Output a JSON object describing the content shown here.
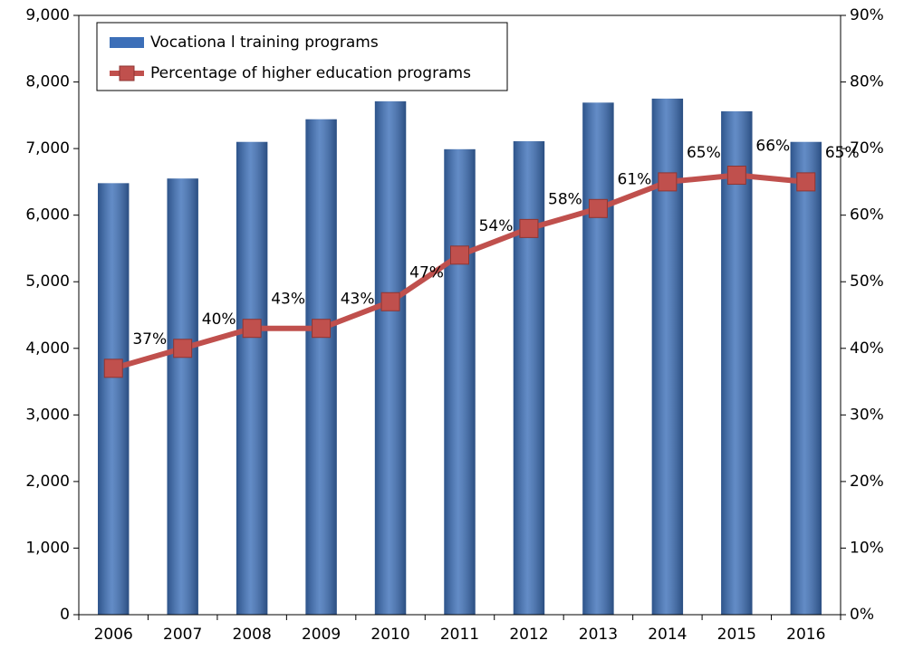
{
  "chart_data": {
    "type": "bar-line",
    "categories": [
      "2006",
      "2007",
      "2008",
      "2009",
      "2010",
      "2011",
      "2012",
      "2013",
      "2014",
      "2015",
      "2016"
    ],
    "series": [
      {
        "name": "Vocationa l training programs",
        "type": "bar",
        "color": "#3c6fb8",
        "values": [
          6480,
          6550,
          7100,
          7440,
          7710,
          6990,
          7110,
          7690,
          7750,
          7560,
          7100
        ]
      },
      {
        "name": "Percentage of higher education programs",
        "type": "line",
        "axis": "y2",
        "color": "#c0504d",
        "values": [
          37,
          40,
          43,
          43,
          47,
          54,
          58,
          61,
          65,
          66,
          65
        ],
        "value_labels": [
          "37%",
          "40%",
          "43%",
          "43%",
          "47%",
          "54%",
          "58%",
          "61%",
          "65%",
          "66%",
          "65%"
        ]
      }
    ],
    "ylim": [
      0,
      9000
    ],
    "yticks": [
      0,
      {
        "value": 1000,
        "label": "1,000"
      },
      {
        "value": 2000,
        "label": "2,000"
      },
      {
        "value": 3000,
        "label": "3,000"
      },
      {
        "value": 4000,
        "label": "4,000"
      },
      {
        "value": 5000,
        "label": "5,000"
      },
      {
        "value": 6000,
        "label": "6,000"
      },
      {
        "value": 7000,
        "label": "7,000"
      },
      {
        "value": 8000,
        "label": "8,000"
      },
      {
        "value": 9000,
        "label": "9,000"
      }
    ],
    "y2lim": [
      0,
      90
    ],
    "y2ticks": [
      {
        "value": 0,
        "label": "0%"
      },
      {
        "value": 10,
        "label": "10%"
      },
      {
        "value": 20,
        "label": "20%"
      },
      {
        "value": 30,
        "label": "30%"
      },
      {
        "value": 40,
        "label": "40%"
      },
      {
        "value": 50,
        "label": "50%"
      },
      {
        "value": 60,
        "label": "60%"
      },
      {
        "value": 70,
        "label": "70%"
      },
      {
        "value": 80,
        "label": "80%"
      },
      {
        "value": 90,
        "label": "90%"
      }
    ],
    "legend": "top-left",
    "grid": false
  }
}
